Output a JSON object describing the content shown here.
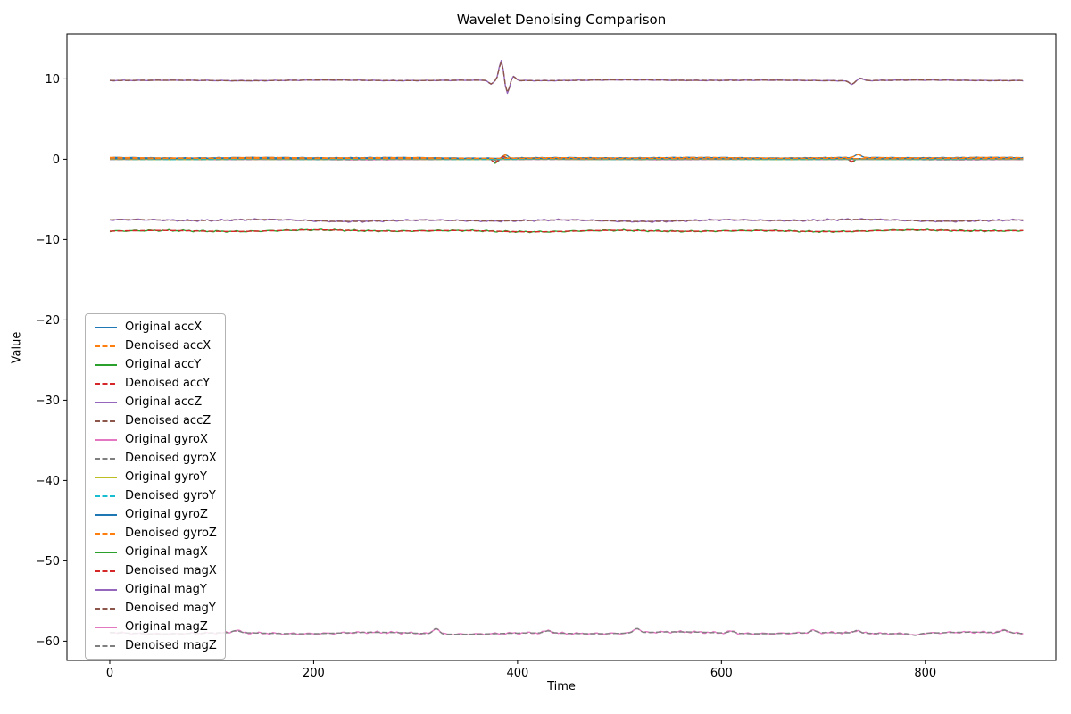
{
  "figure": {
    "title": "Wavelet Denoising Comparison",
    "xlabel": "Time",
    "ylabel": "Value"
  },
  "chart_data": {
    "type": "line",
    "title": "Wavelet Denoising Comparison",
    "xlabel": "Time",
    "ylabel": "Value",
    "xlim": [
      -42,
      928
    ],
    "ylim": [
      -62.4,
      15.6
    ],
    "xticks": [
      0,
      200,
      400,
      600,
      800
    ],
    "yticks": [
      10,
      0,
      -10,
      -20,
      -30,
      -40,
      -50,
      -60
    ],
    "grid": false,
    "legend_position": "lower-left-inside",
    "linewidth": 1.4,
    "x_range": [
      0,
      897
    ],
    "x_step": 2,
    "series": [
      {
        "name": "Original accX",
        "color": "#1f77b4",
        "style": "solid",
        "baseline": 0.18,
        "noise_amp": 0.05,
        "seed": 1,
        "events": [
          {
            "x": 380,
            "amp": -0.4,
            "w": 3
          },
          {
            "x": 388,
            "amp": 0.42,
            "w": 3
          },
          {
            "x": 734,
            "amp": 0.4,
            "w": 4
          }
        ]
      },
      {
        "name": "Denoised accX",
        "color": "#ff7f0e",
        "style": "dashed",
        "baseline": 0.18,
        "noise_amp": 0.05,
        "seed": 1,
        "events": [
          {
            "x": 380,
            "amp": -0.4,
            "w": 3
          },
          {
            "x": 388,
            "amp": 0.42,
            "w": 3
          },
          {
            "x": 734,
            "amp": 0.4,
            "w": 4
          }
        ]
      },
      {
        "name": "Original accY",
        "color": "#2ca02c",
        "style": "solid",
        "baseline": 0.02,
        "noise_amp": 0.05,
        "seed": 2,
        "events": [
          {
            "x": 378,
            "amp": -0.55,
            "w": 3
          },
          {
            "x": 386,
            "amp": 0.3,
            "w": 3
          },
          {
            "x": 728,
            "amp": -0.35,
            "w": 3
          }
        ]
      },
      {
        "name": "Denoised accY",
        "color": "#d62728",
        "style": "dashed",
        "baseline": 0.02,
        "noise_amp": 0.05,
        "seed": 2,
        "events": [
          {
            "x": 378,
            "amp": -0.55,
            "w": 3
          },
          {
            "x": 386,
            "amp": 0.3,
            "w": 3
          },
          {
            "x": 728,
            "amp": -0.35,
            "w": 3
          }
        ]
      },
      {
        "name": "Original accZ",
        "color": "#9467bd",
        "style": "solid",
        "baseline": 9.82,
        "noise_amp": 0.06,
        "seed": 3,
        "events": [
          {
            "x": 374,
            "amp": -0.5,
            "w": 3
          },
          {
            "x": 384,
            "amp": 2.55,
            "w": 3
          },
          {
            "x": 390,
            "amp": -1.65,
            "w": 3
          },
          {
            "x": 396,
            "amp": 0.55,
            "w": 3
          },
          {
            "x": 728,
            "amp": -0.45,
            "w": 4
          },
          {
            "x": 736,
            "amp": 0.3,
            "w": 4
          }
        ]
      },
      {
        "name": "Denoised accZ",
        "color": "#8c564b",
        "style": "dashed",
        "baseline": 9.82,
        "noise_amp": 0.06,
        "seed": 3,
        "events": [
          {
            "x": 374,
            "amp": -0.5,
            "w": 3
          },
          {
            "x": 384,
            "amp": 2.55,
            "w": 3
          },
          {
            "x": 390,
            "amp": -1.65,
            "w": 3
          },
          {
            "x": 396,
            "amp": 0.55,
            "w": 3
          },
          {
            "x": 728,
            "amp": -0.45,
            "w": 4
          },
          {
            "x": 736,
            "amp": 0.3,
            "w": 4
          }
        ]
      },
      {
        "name": "Original gyroX",
        "color": "#e377c2",
        "style": "solid",
        "baseline": -0.03,
        "noise_amp": 0.03,
        "seed": 4,
        "events": []
      },
      {
        "name": "Denoised gyroX",
        "color": "#7f7f7f",
        "style": "dashed",
        "baseline": -0.03,
        "noise_amp": 0.03,
        "seed": 4,
        "events": []
      },
      {
        "name": "Original gyroY",
        "color": "#bcbd22",
        "style": "solid",
        "baseline": 0.0,
        "noise_amp": 0.03,
        "seed": 5,
        "events": []
      },
      {
        "name": "Denoised gyroY",
        "color": "#17becf",
        "style": "dashed",
        "baseline": 0.0,
        "noise_amp": 0.03,
        "seed": 5,
        "events": []
      },
      {
        "name": "Original gyroZ",
        "color": "#1f77b4",
        "style": "solid",
        "baseline": 0.08,
        "noise_amp": 0.035,
        "seed": 6,
        "events": []
      },
      {
        "name": "Denoised gyroZ",
        "color": "#ff7f0e",
        "style": "dashed",
        "baseline": 0.08,
        "noise_amp": 0.035,
        "seed": 6,
        "events": []
      },
      {
        "name": "Original magX",
        "color": "#2ca02c",
        "style": "solid",
        "baseline": -8.92,
        "noise_amp": 0.13,
        "seed": 7,
        "events": []
      },
      {
        "name": "Denoised magX",
        "color": "#d62728",
        "style": "dashed",
        "baseline": -8.92,
        "noise_amp": 0.13,
        "seed": 7,
        "events": []
      },
      {
        "name": "Original magY",
        "color": "#9467bd",
        "style": "solid",
        "baseline": -7.62,
        "noise_amp": 0.15,
        "seed": 8,
        "events": []
      },
      {
        "name": "Denoised magY",
        "color": "#8c564b",
        "style": "dashed",
        "baseline": -7.62,
        "noise_amp": 0.15,
        "seed": 8,
        "events": []
      },
      {
        "name": "Original magZ",
        "color": "#e377c2",
        "style": "solid",
        "baseline": -59.0,
        "noise_amp": 0.17,
        "seed": 9,
        "events": [
          {
            "x": 124,
            "amp": 0.3,
            "w": 5
          },
          {
            "x": 320,
            "amp": 0.75,
            "w": 4
          },
          {
            "x": 430,
            "amp": 0.3,
            "w": 5
          },
          {
            "x": 517,
            "amp": 0.6,
            "w": 4
          },
          {
            "x": 610,
            "amp": 0.25,
            "w": 5
          },
          {
            "x": 690,
            "amp": 0.3,
            "w": 4
          },
          {
            "x": 733,
            "amp": 0.35,
            "w": 4
          },
          {
            "x": 790,
            "amp": -0.25,
            "w": 5
          },
          {
            "x": 878,
            "amp": 0.35,
            "w": 5
          }
        ]
      },
      {
        "name": "Denoised magZ",
        "color": "#7f7f7f",
        "style": "dashed",
        "baseline": -59.0,
        "noise_amp": 0.17,
        "seed": 9,
        "events": [
          {
            "x": 124,
            "amp": 0.3,
            "w": 5
          },
          {
            "x": 320,
            "amp": 0.75,
            "w": 4
          },
          {
            "x": 430,
            "amp": 0.3,
            "w": 5
          },
          {
            "x": 517,
            "amp": 0.6,
            "w": 4
          },
          {
            "x": 610,
            "amp": 0.25,
            "w": 5
          },
          {
            "x": 690,
            "amp": 0.3,
            "w": 4
          },
          {
            "x": 733,
            "amp": 0.35,
            "w": 4
          },
          {
            "x": 790,
            "amp": -0.25,
            "w": 5
          },
          {
            "x": 878,
            "amp": 0.35,
            "w": 5
          }
        ]
      }
    ]
  }
}
